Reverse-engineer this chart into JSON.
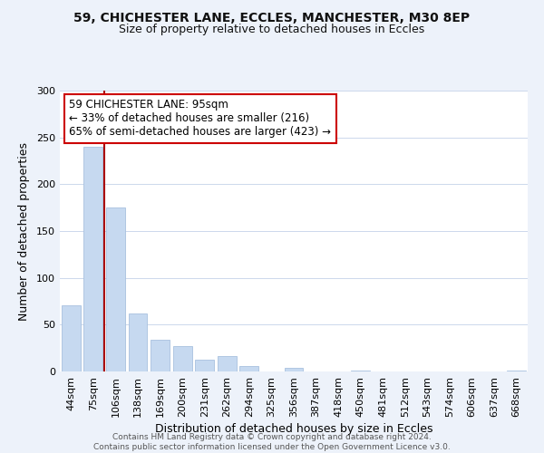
{
  "title_line1": "59, CHICHESTER LANE, ECCLES, MANCHESTER, M30 8EP",
  "title_line2": "Size of property relative to detached houses in Eccles",
  "xlabel": "Distribution of detached houses by size in Eccles",
  "ylabel": "Number of detached properties",
  "categories": [
    "44sqm",
    "75sqm",
    "106sqm",
    "138sqm",
    "169sqm",
    "200sqm",
    "231sqm",
    "262sqm",
    "294sqm",
    "325sqm",
    "356sqm",
    "387sqm",
    "418sqm",
    "450sqm",
    "481sqm",
    "512sqm",
    "543sqm",
    "574sqm",
    "606sqm",
    "637sqm",
    "668sqm"
  ],
  "values": [
    71,
    240,
    175,
    62,
    34,
    27,
    13,
    16,
    6,
    0,
    4,
    0,
    0,
    1,
    0,
    0,
    0,
    0,
    0,
    0,
    1
  ],
  "bar_color": "#c6d9f0",
  "bar_edge_color": "#a8c0de",
  "ylim": [
    0,
    300
  ],
  "yticks": [
    0,
    50,
    100,
    150,
    200,
    250,
    300
  ],
  "annotation_title": "59 CHICHESTER LANE: 95sqm",
  "annotation_line2": "← 33% of detached houses are smaller (216)",
  "annotation_line3": "65% of semi-detached houses are larger (423) →",
  "vline_color": "#aa0000",
  "footer_line1": "Contains HM Land Registry data © Crown copyright and database right 2024.",
  "footer_line2": "Contains public sector information licensed under the Open Government Licence v3.0.",
  "background_color": "#edf2fa",
  "plot_bg_color": "#ffffff",
  "grid_color": "#ccd8ec"
}
